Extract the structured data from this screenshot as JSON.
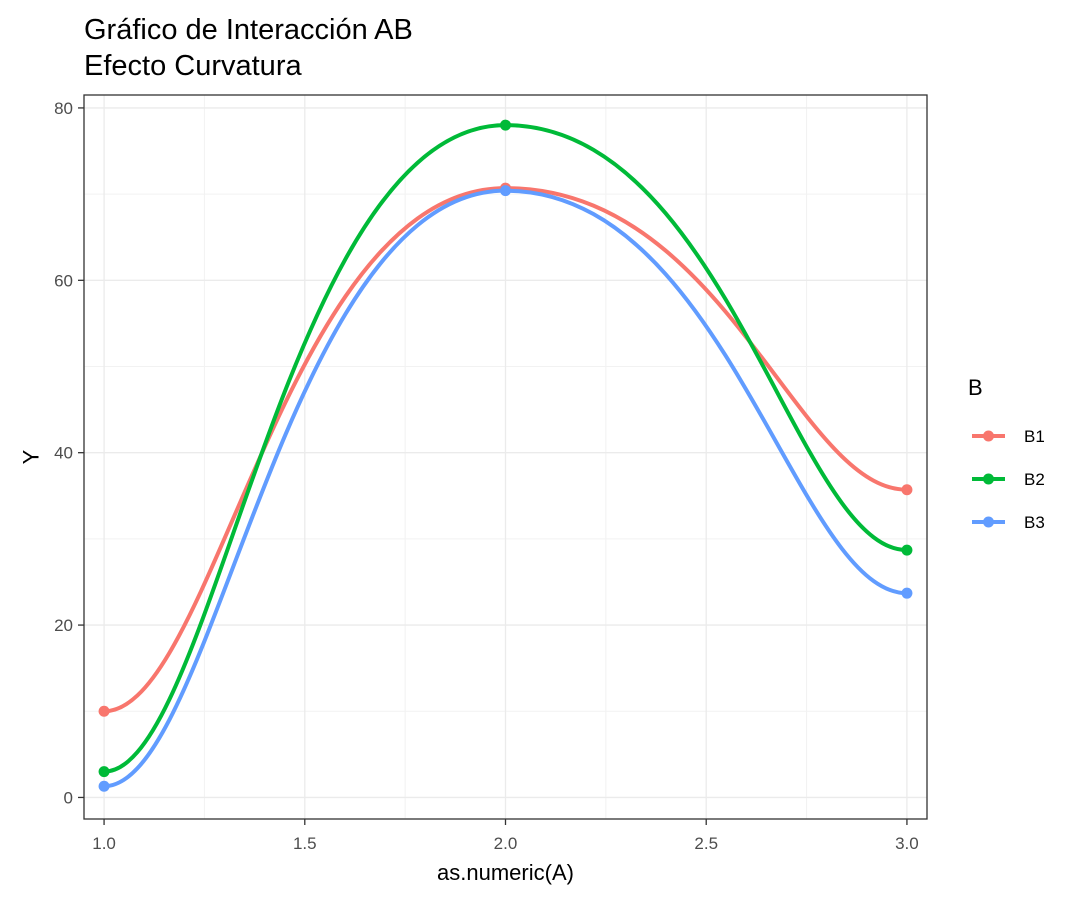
{
  "chart_data": {
    "type": "line",
    "title": "Gráfico de Interacción AB",
    "subtitle": "Efecto Curvatura",
    "xlabel": "as.numeric(A)",
    "ylabel": "Y",
    "xlim": [
      0.95,
      3.05
    ],
    "ylim": [
      -2.5,
      81.5
    ],
    "x_ticks": [
      1.0,
      1.5,
      2.0,
      2.5,
      3.0
    ],
    "x_tick_labels": [
      "1.0",
      "1.5",
      "2.0",
      "2.5",
      "3.0"
    ],
    "y_ticks": [
      0,
      20,
      40,
      60,
      80
    ],
    "y_tick_labels": [
      "0",
      "20",
      "40",
      "60",
      "80"
    ],
    "grid": true,
    "legend": {
      "title": "B",
      "position": "right"
    },
    "x": [
      1,
      2,
      3
    ],
    "series": [
      {
        "name": "B1",
        "values": [
          10.0,
          70.7,
          35.7
        ],
        "color": "#F8766D"
      },
      {
        "name": "B2",
        "values": [
          3.0,
          78.0,
          28.7
        ],
        "color": "#00BA38"
      },
      {
        "name": "B3",
        "values": [
          1.3,
          70.4,
          23.7
        ],
        "color": "#619CFF"
      }
    ]
  }
}
